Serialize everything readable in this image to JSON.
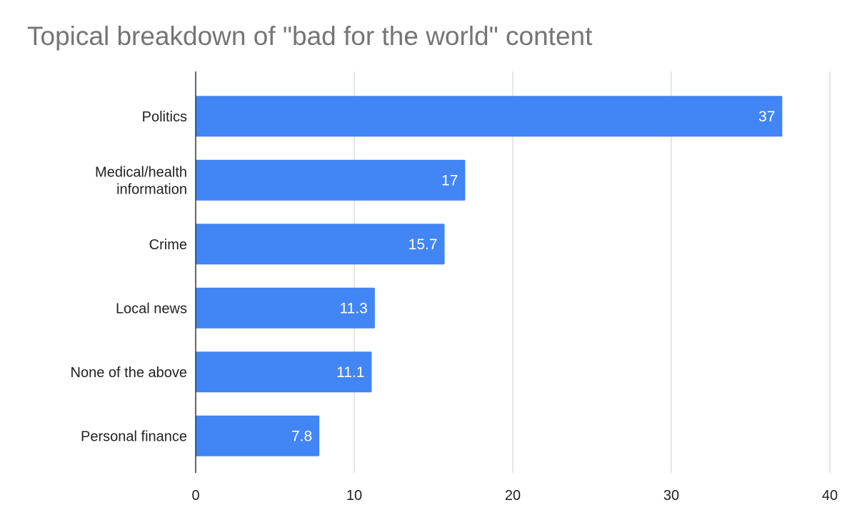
{
  "chart_data": {
    "type": "bar",
    "orientation": "horizontal",
    "title": "Topical breakdown of \"bad for the world\" content",
    "xlabel": "",
    "ylabel": "",
    "categories": [
      [
        "Politics"
      ],
      [
        "Medical/health",
        "information"
      ],
      [
        "Crime"
      ],
      [
        "Local news"
      ],
      [
        "None of the above"
      ],
      [
        "Personal finance"
      ]
    ],
    "values": [
      37,
      17,
      15.7,
      11.3,
      11.1,
      7.8
    ],
    "data_labels": [
      "37",
      "17",
      "15.7",
      "11.3",
      "11.1",
      "7.8"
    ],
    "xlim": [
      0,
      40
    ],
    "xticks": [
      0,
      10,
      20,
      30,
      40
    ],
    "grid": "vertical",
    "legend": "none",
    "colors": {
      "bar": "#4285f4",
      "grid": "#cccccc",
      "axis": "#333333",
      "title": "#757575",
      "data_label": "#ffffff",
      "tick_label": "#222222"
    }
  }
}
